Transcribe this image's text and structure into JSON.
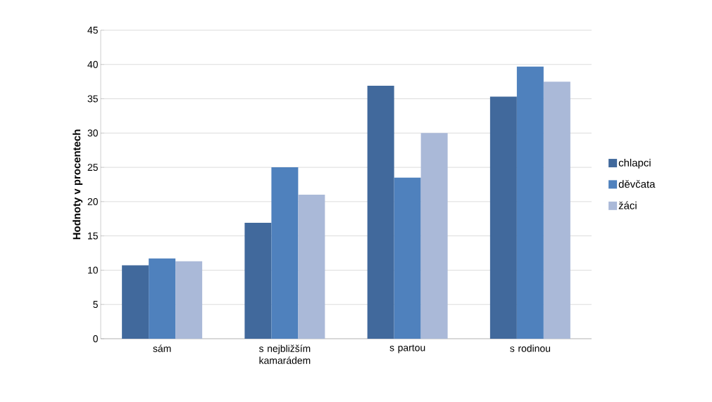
{
  "chart_data": {
    "type": "bar",
    "ylabel": "Hodnoty v procentech",
    "categories": [
      "sám",
      "s nejbližším kamarádem",
      "s partou",
      "s rodinou"
    ],
    "series": [
      {
        "name": "chlapci",
        "color": "#41699c",
        "values": [
          10.7,
          16.9,
          36.9,
          35.3
        ]
      },
      {
        "name": "děvčata",
        "color": "#4f81bd",
        "values": [
          11.7,
          25.0,
          23.5,
          39.7
        ]
      },
      {
        "name": "žáci",
        "color": "#aab9d8",
        "values": [
          11.3,
          21.0,
          30.0,
          37.5
        ]
      }
    ],
    "ylim": [
      0,
      45
    ],
    "yticks": [
      0,
      5,
      10,
      15,
      20,
      25,
      30,
      35,
      40,
      45
    ],
    "grid": "y",
    "legend": "right"
  }
}
